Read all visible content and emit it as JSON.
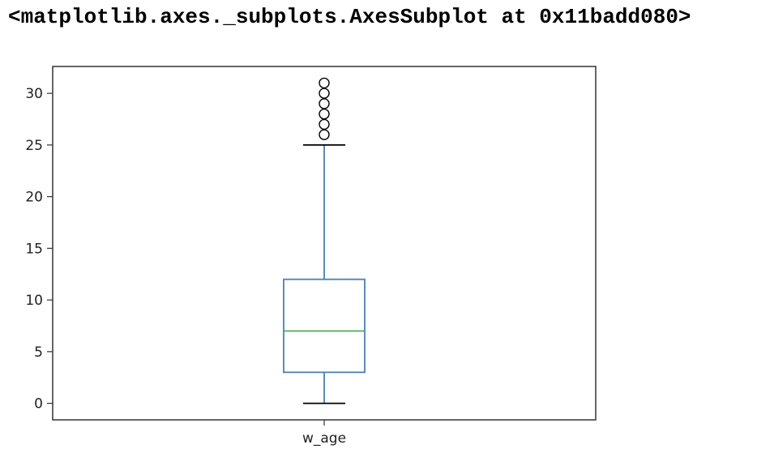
{
  "output": {
    "repr_text": "<matplotlib.axes._subplots.AxesSubplot at 0x11badd080>"
  },
  "chart_data": {
    "type": "box",
    "categories": [
      "w_age"
    ],
    "ylim": [
      -1.6,
      32.6
    ],
    "yticks": [
      0,
      5,
      10,
      15,
      20,
      25,
      30
    ],
    "grid": false,
    "box": {
      "whisker_low": 0,
      "q1": 3,
      "median": 7,
      "q3": 12,
      "whisker_high": 25
    },
    "outliers": [
      26,
      27,
      28,
      29,
      30,
      31
    ],
    "colors": {
      "box": "#4a7fb5",
      "median": "#4caf50",
      "whisker": "#4a7fb5",
      "cap": "#000000",
      "frame": "#333333",
      "outlier": "#000000"
    }
  }
}
